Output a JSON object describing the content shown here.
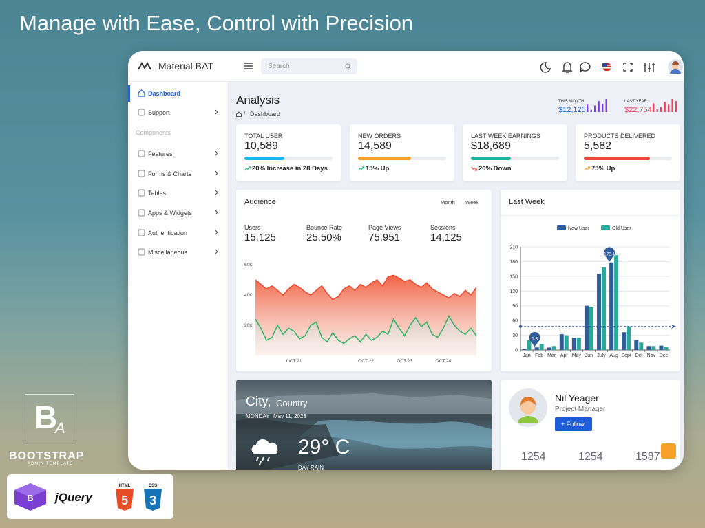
{
  "headline": "Manage with Ease, Control with Precision",
  "brand": "Material BAT",
  "search_placeholder": "Search",
  "sidebar": {
    "top": [
      "Dashboard",
      "Support"
    ],
    "section": "Components",
    "items": [
      "Features",
      "Forms & Charts",
      "Tables",
      "Apps & Widgets",
      "Authentication",
      "Miscellaneous"
    ]
  },
  "page": {
    "title": "Analysis",
    "breadcrumb": "Dashboard"
  },
  "summary": [
    {
      "label": "THIS MONTH",
      "value": "$12,125",
      "color": "#7b3fe4",
      "value_color": "#1f5fd1",
      "bars": [
        10,
        3,
        9,
        15,
        11,
        18
      ]
    },
    {
      "label": "LAST YEAR",
      "value": "$22,754",
      "color": "#ef3f5c",
      "value_color": "#ef3f5c",
      "bars": [
        12,
        4,
        7,
        14,
        10,
        18,
        15
      ]
    }
  ],
  "stats": [
    {
      "label": "TOTAL USER",
      "value": "10,589",
      "progress": 45,
      "color": "#1ab8f0",
      "note": "20% Increase in 28 Days",
      "trend_color": "#22b573"
    },
    {
      "label": "NEW ORDERS",
      "value": "14,589",
      "progress": 60,
      "color": "#f7a12b",
      "note": "15% Up",
      "trend_color": "#22b573"
    },
    {
      "label": "LAST WEEK EARNINGS",
      "value": "$18,689",
      "progress": 45,
      "color": "#1bb39a",
      "note": "20% Down",
      "trend_color": "#f0543a"
    },
    {
      "label": "PRODUCTS DELIVERED",
      "value": "5,582",
      "progress": 75,
      "color": "#f0483e",
      "note": "75% Up",
      "trend_color": "#f7a12b"
    }
  ],
  "audience": {
    "title": "Audience",
    "tabs": [
      "Month",
      "Week"
    ],
    "metrics": [
      {
        "label": "Users",
        "value": "15,125"
      },
      {
        "label": "Bounce Rate",
        "value": "25.50%"
      },
      {
        "label": "Page Views",
        "value": "75,951"
      },
      {
        "label": "Sessions",
        "value": "14,125"
      }
    ],
    "chart": {
      "type": "area",
      "ylim": [
        0,
        60000
      ],
      "yticks": [
        {
          "value": 20000,
          "label": "20K"
        },
        {
          "value": 40000,
          "label": "40K"
        },
        {
          "value": 60000,
          "label": "60K"
        }
      ],
      "xticks": [
        {
          "value": 7,
          "label": "OCT 21"
        },
        {
          "value": 20,
          "label": "OCT 22"
        },
        {
          "value": 27,
          "label": "OCT 23"
        },
        {
          "value": 34,
          "label": "OCT 24"
        }
      ],
      "series": [
        {
          "color": "#f04a2e",
          "values": [
            50000,
            47000,
            44000,
            46000,
            43000,
            40000,
            44000,
            47000,
            45000,
            42000,
            40000,
            43000,
            46000,
            41000,
            37000,
            39000,
            44000,
            46000,
            43000,
            47000,
            45000,
            48000,
            50000,
            46000,
            52000,
            53000,
            51000,
            49000,
            50000,
            47000,
            45000,
            48000,
            44000,
            42000,
            40000,
            38000,
            41000,
            39000,
            43000,
            40000,
            45000
          ]
        },
        {
          "color": "#34b36a",
          "values": [
            24000,
            18000,
            10000,
            12000,
            20000,
            14000,
            18000,
            16000,
            11000,
            13000,
            20000,
            22000,
            12000,
            9000,
            15000,
            10000,
            8000,
            11000,
            13000,
            9000,
            14000,
            10000,
            12000,
            16000,
            14000,
            24000,
            18000,
            13000,
            20000,
            25000,
            19000,
            22000,
            14000,
            12000,
            18000,
            26000,
            20000,
            16000,
            14000,
            18000,
            13000
          ]
        }
      ]
    }
  },
  "last_week": {
    "title": "Last Week",
    "chart": {
      "type": "bar",
      "categories": [
        "Jan",
        "Feb",
        "Mar",
        "Apr",
        "May",
        "Jun",
        "July",
        "Aug",
        "Sept",
        "Oct",
        "Nov",
        "Dec"
      ],
      "series": [
        {
          "name": "New User",
          "color": "#2e5b9a",
          "values": [
            2,
            5.3,
            5,
            32,
            25,
            90,
            155,
            178.1,
            36,
            20,
            8,
            9
          ]
        },
        {
          "name": "Old User",
          "color": "#2aa89a",
          "values": [
            20,
            12,
            8,
            30,
            25,
            88,
            168,
            193,
            48,
            15,
            8,
            7
          ]
        }
      ],
      "labeled_points": [
        1,
        7
      ],
      "average_line": 48,
      "ylim": [
        0,
        210
      ],
      "yticks": [
        0,
        30,
        60,
        90,
        120,
        150,
        180,
        210
      ],
      "grid": true,
      "legend": "top"
    }
  },
  "weather": {
    "city": "City,",
    "country": "Country",
    "day": "MONDAY",
    "date": "May 11, 2023",
    "temp": "29° C",
    "condition": "DAY RAIN"
  },
  "profile": {
    "name": "Nil Yeager",
    "role": "Project Manager",
    "button": "+ Follow",
    "counts": [
      "1254",
      "1254",
      "1587"
    ]
  },
  "logo": {
    "letters": [
      "B",
      "A"
    ],
    "title": "BOOTSTRAP",
    "subtitle": "ADMIN TEMPLATE"
  },
  "badges": {
    "bootstrap": "B",
    "jquery": "jQuery",
    "html": "HTML",
    "html_version": "5",
    "css": "CSS",
    "css_version": "3"
  }
}
